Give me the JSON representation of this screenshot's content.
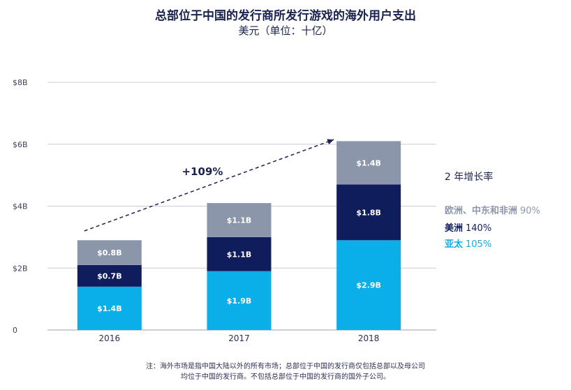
{
  "header": {
    "title": "总部位于中国的发行商所发行游戏的海外用户支出",
    "subtitle": "美元（单位：十亿）"
  },
  "chart_data": {
    "type": "bar",
    "stacked": true,
    "categories": [
      "2016",
      "2017",
      "2018"
    ],
    "ylim": [
      0,
      8
    ],
    "yticks": [
      {
        "value": 0,
        "label": "0"
      },
      {
        "value": 2,
        "label": "$2B"
      },
      {
        "value": 4,
        "label": "$4B"
      },
      {
        "value": 6,
        "label": "$6B"
      },
      {
        "value": 8,
        "label": "$8B"
      }
    ],
    "grid": true,
    "series": [
      {
        "name": "亚太",
        "values": [
          1.4,
          1.9,
          2.9
        ],
        "labels": [
          "$1.4B",
          "$1.9B",
          "$2.9B"
        ],
        "color": "#0aaee8"
      },
      {
        "name": "美洲",
        "values": [
          0.7,
          1.1,
          1.8
        ],
        "labels": [
          "$0.7B",
          "$1.1B",
          "$1.8B"
        ],
        "color": "#101d5c"
      },
      {
        "name": "欧洲、中东和非洲",
        "values": [
          0.8,
          1.1,
          1.4
        ],
        "labels": [
          "$0.8B",
          "$1.1B",
          "$1.4B"
        ],
        "color": "#8c96ab"
      }
    ],
    "annotation": {
      "text": "+109%",
      "from": "2016",
      "to": "2018"
    },
    "legend_placement": "right"
  },
  "legend": {
    "title": "2 年增长率",
    "items": [
      {
        "name": "欧洲、中东和非洲",
        "rate": "90%",
        "color": "#8c96ab"
      },
      {
        "name": "美洲",
        "rate": "140%",
        "color": "#101d5c"
      },
      {
        "name": "亚太",
        "rate": "105%",
        "color": "#0aaee8"
      }
    ]
  },
  "footnote": {
    "line1": "注：海外市场是指中国大陆以外的所有市场；总部位于中国的发行商仅包括总部以及母公司",
    "line2": "均位于中国的发行商。不包括总部位于中国的发行商的国外子公司。"
  }
}
